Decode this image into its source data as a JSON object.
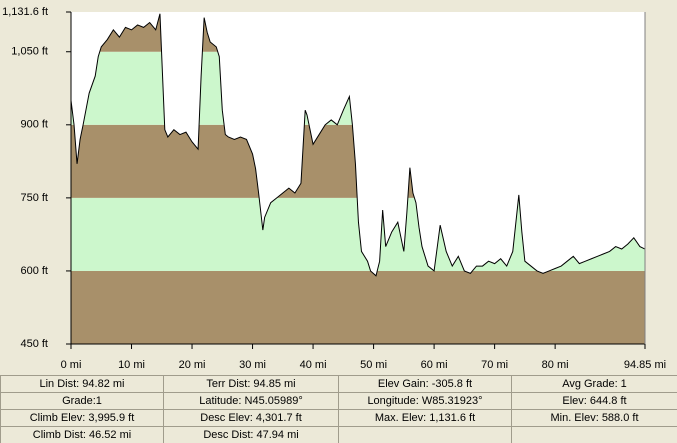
{
  "chart_data": {
    "type": "area",
    "x": [
      0,
      0.5,
      1,
      1.5,
      2,
      3,
      4,
      4.5,
      5,
      6,
      7,
      8,
      9,
      10,
      11,
      12,
      13,
      14,
      14.7,
      15.5,
      16,
      17,
      18,
      19,
      20,
      21,
      21.5,
      22,
      22.5,
      23,
      24,
      24.5,
      25,
      25.5,
      26,
      27,
      28,
      29,
      30,
      30.5,
      31,
      31.7,
      32,
      33,
      34,
      35,
      36,
      37,
      38,
      38.7,
      39,
      40,
      41,
      42,
      43,
      44,
      45,
      46,
      46.5,
      47,
      47.5,
      48,
      49,
      49.5,
      50.4,
      51,
      51.5,
      52,
      53,
      54,
      55,
      55.5,
      56,
      56.5,
      57,
      57.5,
      58,
      59,
      60,
      61,
      62,
      63,
      64,
      65,
      66,
      67,
      68,
      69,
      70,
      71,
      72,
      73,
      74,
      74.5,
      75,
      76,
      77,
      78,
      79,
      80,
      81,
      82,
      83,
      84,
      85,
      86,
      87,
      88,
      89,
      90,
      91,
      92,
      93,
      94,
      94.85
    ],
    "values": [
      950,
      900,
      820,
      870,
      900,
      965,
      1000,
      1040,
      1060,
      1075,
      1095,
      1080,
      1100,
      1095,
      1105,
      1100,
      1110,
      1095,
      1128,
      890,
      875,
      890,
      880,
      885,
      865,
      850,
      1000,
      1120,
      1090,
      1070,
      1060,
      1040,
      930,
      880,
      875,
      870,
      875,
      870,
      840,
      810,
      760,
      684,
      710,
      740,
      750,
      760,
      770,
      760,
      780,
      930,
      920,
      860,
      880,
      900,
      910,
      900,
      930,
      958,
      900,
      820,
      700,
      640,
      620,
      600,
      590,
      620,
      725,
      650,
      680,
      700,
      640,
      720,
      812,
      760,
      740,
      690,
      650,
      610,
      600,
      694,
      640,
      610,
      630,
      600,
      595,
      610,
      610,
      620,
      615,
      625,
      610,
      640,
      756,
      680,
      620,
      610,
      600,
      595,
      600,
      605,
      610,
      620,
      630,
      615,
      620,
      625,
      630,
      635,
      640,
      650,
      645,
      655,
      668,
      650,
      645
    ],
    "xlim": [
      0,
      94.85
    ],
    "ylim": [
      450,
      1131.6
    ],
    "xticks": [
      {
        "value": 0,
        "label": "0 mi"
      },
      {
        "value": 10,
        "label": "10 mi"
      },
      {
        "value": 20,
        "label": "20 mi"
      },
      {
        "value": 30,
        "label": "30 mi"
      },
      {
        "value": 40,
        "label": "40 mi"
      },
      {
        "value": 50,
        "label": "50 mi"
      },
      {
        "value": 60,
        "label": "60 mi"
      },
      {
        "value": 70,
        "label": "70 mi"
      },
      {
        "value": 80,
        "label": "80 mi"
      },
      {
        "value": 94.85,
        "label": "94.85 mi"
      }
    ],
    "yticks": [
      {
        "value": 450,
        "label": "450 ft"
      },
      {
        "value": 600,
        "label": "600 ft"
      },
      {
        "value": 750,
        "label": "750 ft"
      },
      {
        "value": 900,
        "label": "900 ft"
      },
      {
        "value": 1050,
        "label": "1,050 ft"
      },
      {
        "value": 1131.6,
        "label": "1,131.6 ft"
      }
    ],
    "color": "#000000",
    "band_colors": [
      "#a8906a",
      "#ccf7cc"
    ]
  },
  "stats": {
    "rows": [
      [
        "Lin Dist: 94.82 mi",
        "Terr Dist: 94.85 mi",
        "Elev Gain: -305.8 ft",
        "Avg Grade: 1"
      ],
      [
        "Grade:1",
        "Latitude: N45.05989°",
        "Longitude: W85.31923°",
        "Elev: 644.8 ft"
      ],
      [
        "Climb Elev: 3,995.9 ft",
        "Desc Elev: 4,301.7 ft",
        "Max. Elev: 1,131.6 ft",
        "Min. Elev: 588.0 ft"
      ],
      [
        "Climb Dist: 46.52 mi",
        "Desc Dist: 47.94 mi"
      ]
    ]
  }
}
